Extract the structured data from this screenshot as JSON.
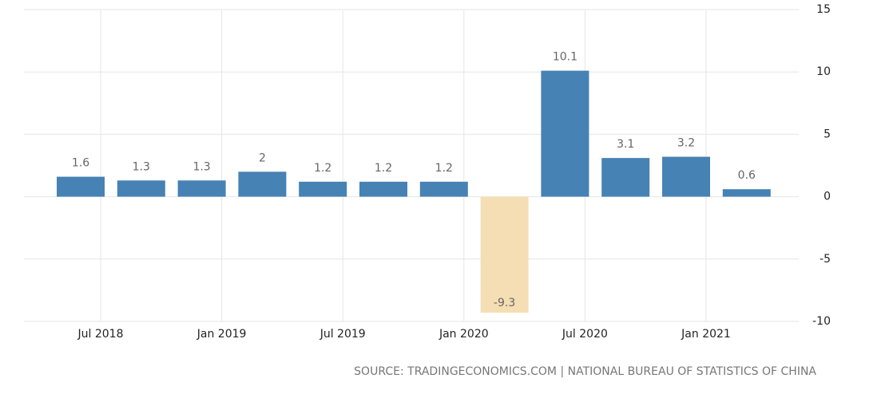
{
  "chart_data": {
    "type": "bar",
    "categories": [
      null,
      null,
      null,
      null,
      null,
      null,
      null,
      null,
      null,
      null,
      null,
      null
    ],
    "values": [
      1.6,
      1.3,
      1.3,
      2,
      1.2,
      1.2,
      1.2,
      -9.3,
      10.1,
      3.1,
      3.2,
      0.6
    ],
    "colors": [
      "#4682b4",
      "#4682b4",
      "#4682b4",
      "#4682b4",
      "#4682b4",
      "#4682b4",
      "#4682b4",
      "#f5deb3",
      "#4682b4",
      "#4682b4",
      "#4682b4",
      "#4682b4"
    ],
    "xticks": [
      {
        "value": 0.33,
        "label": "Jul 2018"
      },
      {
        "value": 2.33,
        "label": "Jan 2019"
      },
      {
        "value": 4.33,
        "label": "Jul 2019"
      },
      {
        "value": 6.33,
        "label": "Jan 2020"
      },
      {
        "value": 8.33,
        "label": "Jul 2020"
      },
      {
        "value": 10.33,
        "label": "Jan 2021"
      }
    ],
    "ylim": [
      -10,
      15
    ],
    "yticks": [
      -10,
      -5,
      0,
      5,
      10,
      15
    ],
    "grid": true,
    "source": "SOURCE: TRADINGECONOMICS.COM | NATIONAL BUREAU OF STATISTICS OF CHINA"
  }
}
